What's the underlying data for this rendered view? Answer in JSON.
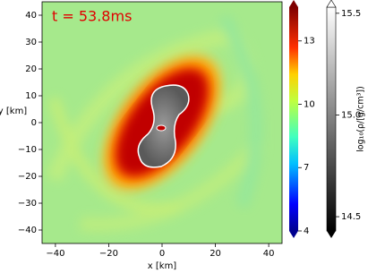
{
  "chart_data": {
    "type": "heatmap",
    "annotation": "t = 53.8ms",
    "xlabel": "x [km]",
    "ylabel": "y [km]",
    "xlim": [
      -45,
      45
    ],
    "ylim": [
      -45,
      45
    ],
    "xticks": [
      {
        "value": -40,
        "label": "−40"
      },
      {
        "value": -20,
        "label": "−20"
      },
      0,
      20,
      40
    ],
    "yticks": [
      {
        "value": -40,
        "label": "−40"
      },
      {
        "value": -30,
        "label": "−30"
      },
      {
        "value": -20,
        "label": "−20"
      },
      {
        "value": -10,
        "label": "−10"
      },
      0,
      10,
      20,
      30,
      40
    ],
    "colorbars": [
      {
        "colormap": "jet",
        "lim": [
          4,
          14.6
        ],
        "ticks": [
          4,
          7,
          10,
          13
        ]
      },
      {
        "colormap": "gray",
        "lim": [
          14.43,
          15.53
        ],
        "ticks": [
          {
            "value": 14.5,
            "label": "14.5"
          },
          {
            "value": 15.0,
            "label": "15.0"
          },
          {
            "value": 15.5,
            "label": "15.5"
          }
        ],
        "label": "log₁₀(ρ/[g/cm³])"
      }
    ]
  }
}
